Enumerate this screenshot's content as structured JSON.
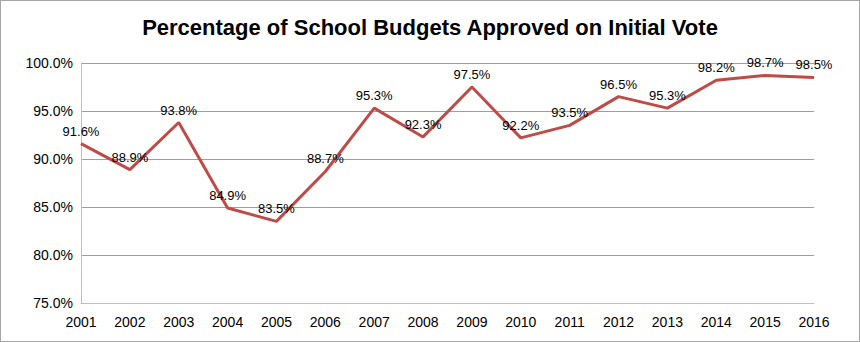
{
  "chart_data": {
    "type": "line",
    "title": "Percentage of School Budgets Approved on Initial Vote",
    "categories": [
      "2001",
      "2002",
      "2003",
      "2004",
      "2005",
      "2006",
      "2007",
      "2008",
      "2009",
      "2010",
      "2011",
      "2012",
      "2013",
      "2014",
      "2015",
      "2016"
    ],
    "values": [
      91.6,
      88.9,
      93.8,
      84.9,
      83.5,
      88.7,
      95.3,
      92.3,
      97.5,
      92.2,
      93.5,
      96.5,
      95.3,
      98.2,
      98.7,
      98.5
    ],
    "value_labels": [
      "91.6%",
      "88.9%",
      "93.8%",
      "84.9%",
      "83.5%",
      "88.7%",
      "95.3%",
      "92.3%",
      "97.5%",
      "92.2%",
      "93.5%",
      "96.5%",
      "95.3%",
      "98.2%",
      "98.7%",
      "98.5%"
    ],
    "color": "#be4b48",
    "ylim": [
      75,
      100
    ],
    "yticks": [
      {
        "value": 75,
        "label": "75.0%"
      },
      {
        "value": 80,
        "label": "80.0%"
      },
      {
        "value": 85,
        "label": "85.0%"
      },
      {
        "value": 90,
        "label": "90.0%"
      },
      {
        "value": 95,
        "label": "95.0%"
      },
      {
        "value": 100,
        "label": "100.0%"
      }
    ],
    "grid": true,
    "data_labels": true
  }
}
